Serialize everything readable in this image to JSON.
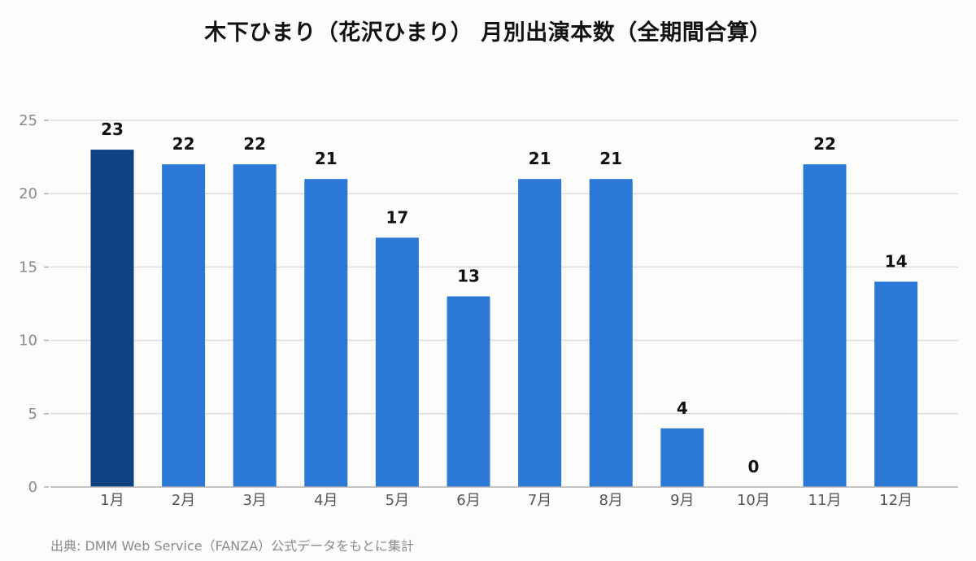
{
  "chart_data": {
    "type": "bar",
    "title": "木下ひまり（花沢ひまり） 月別出演本数（全期間合算）",
    "categories": [
      "1月",
      "2月",
      "3月",
      "4月",
      "5月",
      "6月",
      "7月",
      "8月",
      "9月",
      "10月",
      "11月",
      "12月"
    ],
    "values": [
      23,
      22,
      22,
      21,
      17,
      13,
      21,
      21,
      4,
      0,
      22,
      14
    ],
    "ylim": [
      0,
      25
    ],
    "yticks": [
      0,
      5,
      10,
      15,
      20,
      25
    ],
    "grid": true,
    "highlight_index": 0,
    "colors": {
      "bar": "#2b78d6",
      "highlight": "#0f4185",
      "grid": "#dcdcdc",
      "axis": "#b0b0b0"
    }
  },
  "footer": {
    "source": "出典: DMM Web Service（FANZA）公式データをもとに集計"
  }
}
